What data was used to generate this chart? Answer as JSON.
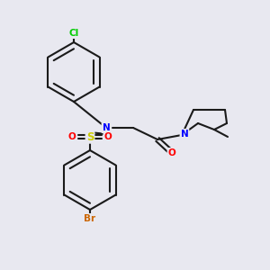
{
  "bg_color": "#e8e8f0",
  "bond_color": "#1a1a1a",
  "bond_width": 1.5,
  "atom_colors": {
    "N": "#0000ff",
    "O": "#ff0000",
    "S": "#cccc00",
    "Cl": "#00cc00",
    "Br": "#cc6600"
  },
  "font_size": 7.5,
  "label_font_size": 7.5
}
